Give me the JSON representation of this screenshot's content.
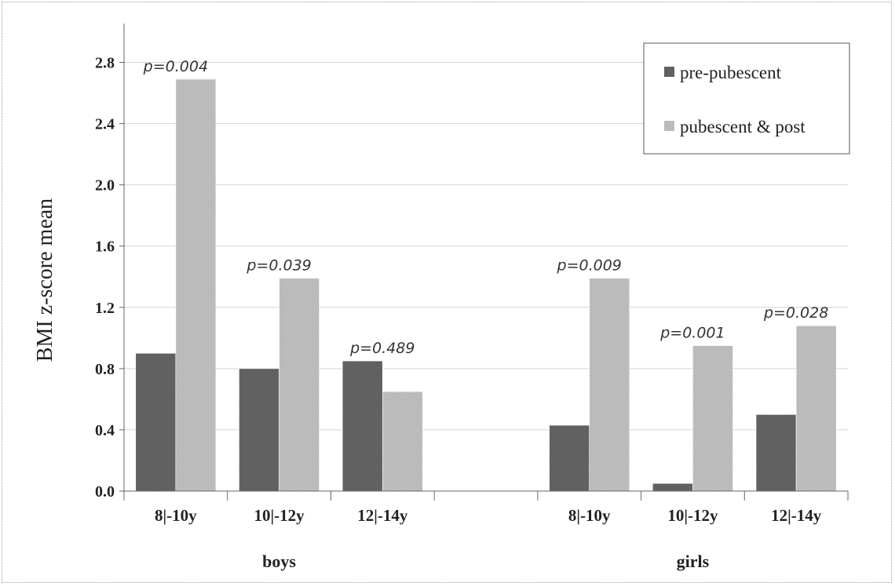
{
  "chart_data": {
    "type": "bar",
    "ylabel": "BMI z-score mean",
    "ylim": [
      0,
      3.0
    ],
    "yticks": [
      "0.0",
      "0.4",
      "0.8",
      "1.2",
      "1.6",
      "2.0",
      "2.4",
      "2.8"
    ],
    "grid": true,
    "legend_position": "top-right",
    "groups": [
      {
        "name": "boys",
        "categories": [
          "8|-10y",
          "10|-12y",
          "12|-14y"
        ]
      },
      {
        "name": "girls",
        "categories": [
          "8|-10y",
          "10|-12y",
          "12|-14y"
        ]
      }
    ],
    "series": [
      {
        "name": "pre-pubescent",
        "color": "#5f5f5f",
        "values": [
          0.9,
          0.8,
          0.85,
          0.43,
          0.05,
          0.5
        ]
      },
      {
        "name": "pubescent & post",
        "color": "#b9b9b9",
        "values": [
          2.69,
          1.39,
          0.65,
          1.39,
          0.95,
          1.08
        ]
      }
    ],
    "annotations": [
      "p=0.004",
      "p=0.039",
      "p=0.489",
      "p=0.009",
      "p=0.001",
      "p=0.028"
    ]
  }
}
